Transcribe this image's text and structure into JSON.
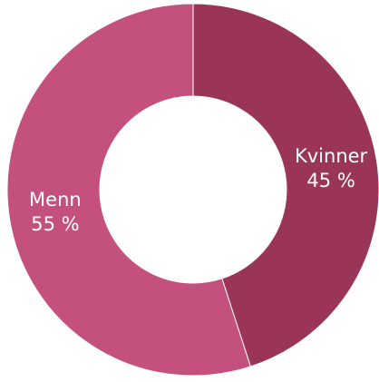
{
  "chart_data": {
    "type": "donut",
    "categories": [
      "Kvinner",
      "Menn"
    ],
    "values": [
      45,
      55
    ],
    "value_labels": [
      "45 %",
      "55 %"
    ],
    "colors": [
      "#9b3558",
      "#c4507e"
    ]
  }
}
